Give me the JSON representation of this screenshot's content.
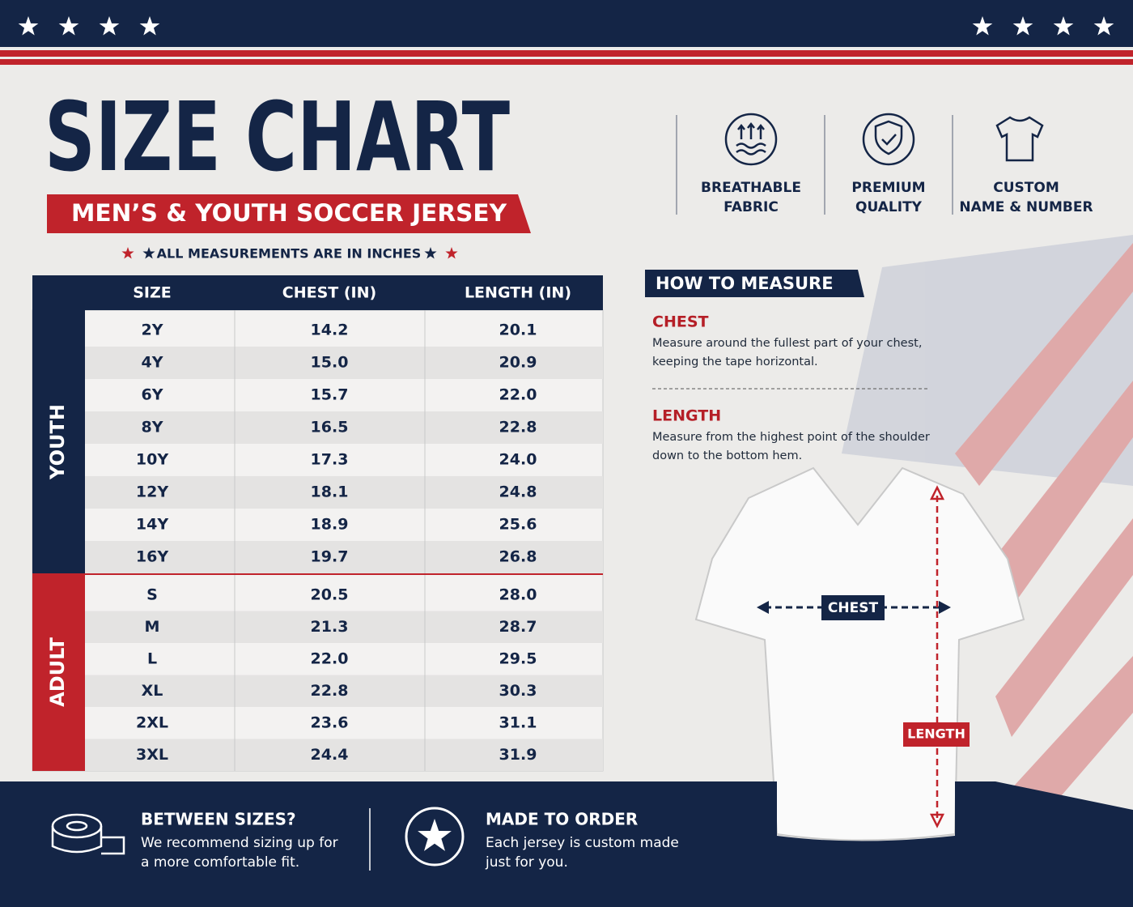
{
  "header": {
    "title": "SIZE CHART",
    "subtitle": "MEN’S & YOUTH SOCCER JERSEY",
    "note": "ALL MEASUREMENTS ARE IN INCHES"
  },
  "features": [
    {
      "lines": [
        "BREATHABLE",
        "FABRIC"
      ]
    },
    {
      "lines": [
        "PREMIUM",
        "QUALITY"
      ]
    },
    {
      "lines": [
        "CUSTOM",
        "NAME & NUMBER"
      ]
    }
  ],
  "table": {
    "columns": [
      "SIZE",
      "CHEST (IN)",
      "LENGTH (IN)"
    ],
    "groups": [
      {
        "name": "YOUTH",
        "rows": [
          [
            "2Y",
            "14.2",
            "20.1"
          ],
          [
            "4Y",
            "15.0",
            "20.9"
          ],
          [
            "6Y",
            "15.7",
            "22.0"
          ],
          [
            "8Y",
            "16.5",
            "22.8"
          ],
          [
            "10Y",
            "17.3",
            "24.0"
          ],
          [
            "12Y",
            "18.1",
            "24.8"
          ],
          [
            "14Y",
            "18.9",
            "25.6"
          ],
          [
            "16Y",
            "19.7",
            "26.8"
          ]
        ]
      },
      {
        "name": "ADULT",
        "rows": [
          [
            "S",
            "20.5",
            "28.0"
          ],
          [
            "M",
            "21.3",
            "28.7"
          ],
          [
            "L",
            "22.0",
            "29.5"
          ],
          [
            "XL",
            "22.8",
            "30.3"
          ],
          [
            "2XL",
            "23.6",
            "31.1"
          ],
          [
            "3XL",
            "24.4",
            "31.9"
          ]
        ]
      }
    ]
  },
  "how_to_measure": {
    "title": "HOW TO MEASURE",
    "sections": [
      {
        "heading": "CHEST",
        "lines": [
          "Measure around the fullest part of your chest,",
          "keeping the tape horizontal."
        ]
      },
      {
        "heading": "LENGTH",
        "lines": [
          "Measure from the highest point of the shoulder",
          "down to the bottom hem."
        ]
      }
    ]
  },
  "diagram": {
    "chest_label": "CHEST",
    "length_label": "LENGTH"
  },
  "footer": [
    {
      "title": "BETWEEN SIZES?",
      "lines": [
        "We recommend sizing up for",
        "a more comfortable fit."
      ]
    },
    {
      "title": "MADE TO ORDER",
      "lines": [
        "Each jersey is custom made",
        "just for you."
      ]
    }
  ]
}
